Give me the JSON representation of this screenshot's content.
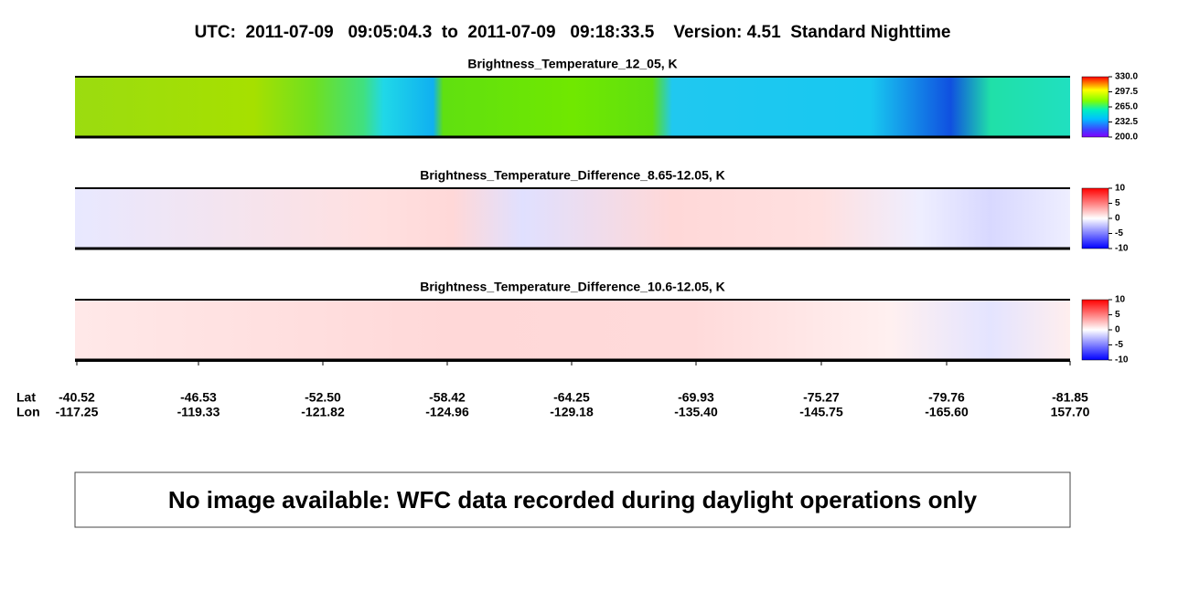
{
  "title": "UTC:  2011-07-09   09:05:04.3  to  2011-07-09   09:18:33.5    Version: 4.51  Standard Nighttime",
  "panels": [
    {
      "title": "Brightness_Temperature_12_05, K",
      "colorbar_ticks": [
        {
          "value": 330,
          "label": "330.0"
        },
        {
          "value": 297.5,
          "label": "297.5"
        },
        {
          "value": 265,
          "label": "265.0"
        },
        {
          "value": 232.5,
          "label": "232.5"
        },
        {
          "value": 200,
          "label": "200.0"
        }
      ]
    },
    {
      "title": "Brightness_Temperature_Difference_8.65-12.05, K",
      "colorbar_ticks": [
        10,
        5,
        0,
        -5,
        -10
      ]
    },
    {
      "title": "Brightness_Temperature_Difference_10.6-12.05, K",
      "colorbar_ticks": [
        10,
        5,
        0,
        -5,
        -10
      ]
    }
  ],
  "axis": {
    "lat_label": "Lat",
    "lon_label": "Lon",
    "lat": [
      "-40.52",
      "-46.53",
      "-52.50",
      "-58.42",
      "-64.25",
      "-69.93",
      "-75.27",
      "-79.76",
      "-81.85"
    ],
    "lon": [
      "-117.25",
      "-119.33",
      "-121.82",
      "-124.96",
      "-129.18",
      "-135.40",
      "-145.75",
      "-165.60",
      "157.70"
    ]
  },
  "message": "No image available: WFC data recorded during daylight operations only"
}
